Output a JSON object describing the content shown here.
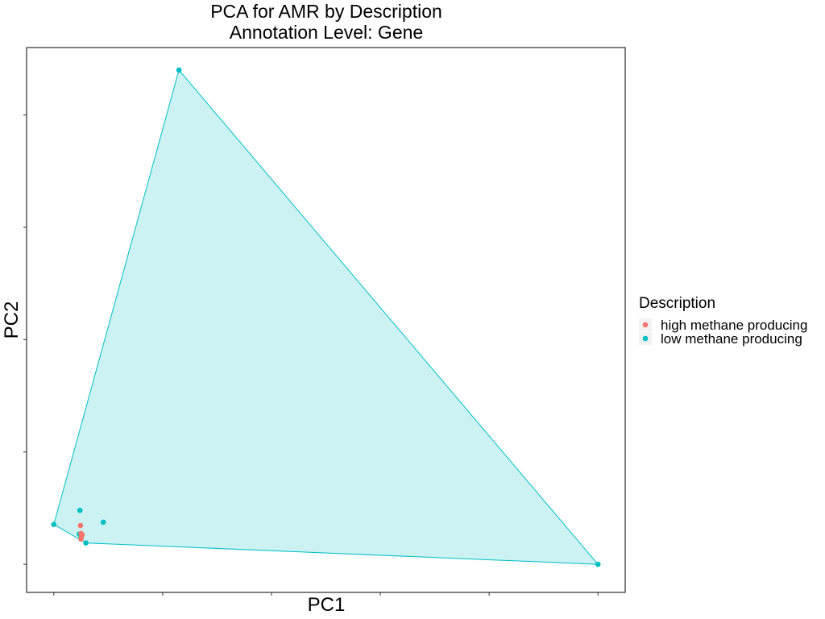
{
  "chart_data": {
    "type": "scatter",
    "title": "PCA for AMR by Description",
    "subtitle": "Annotation Level: Gene",
    "xlabel": "PC1",
    "ylabel": "PC2",
    "xlim": [
      -0.5,
      10.5
    ],
    "ylim": [
      -0.5,
      9.2
    ],
    "grid": false,
    "tick_labels_shown": false,
    "legend_title": "Description",
    "legend_placement": "right",
    "hull_fill_opacity": 0.2,
    "series": [
      {
        "name": "high methane producing",
        "color": "#F8766D",
        "hull": false,
        "points": [
          {
            "x": 0.49,
            "y": 0.69
          },
          {
            "x": 0.5,
            "y": 0.55
          },
          {
            "x": 0.51,
            "y": 0.5
          },
          {
            "x": 0.5,
            "y": 0.45
          },
          {
            "x": 0.52,
            "y": 0.53
          }
        ]
      },
      {
        "name": "low methane producing",
        "color": "#00BFC4",
        "hull": true,
        "points": [
          {
            "x": 2.3,
            "y": 8.8
          },
          {
            "x": 10.0,
            "y": 0.0
          },
          {
            "x": 0.0,
            "y": 0.71
          },
          {
            "x": 0.48,
            "y": 0.96
          },
          {
            "x": 0.59,
            "y": 0.38
          },
          {
            "x": 0.91,
            "y": 0.75
          },
          {
            "x": 0.47,
            "y": 0.54
          },
          {
            "x": 0.5,
            "y": 0.48
          }
        ]
      }
    ]
  }
}
